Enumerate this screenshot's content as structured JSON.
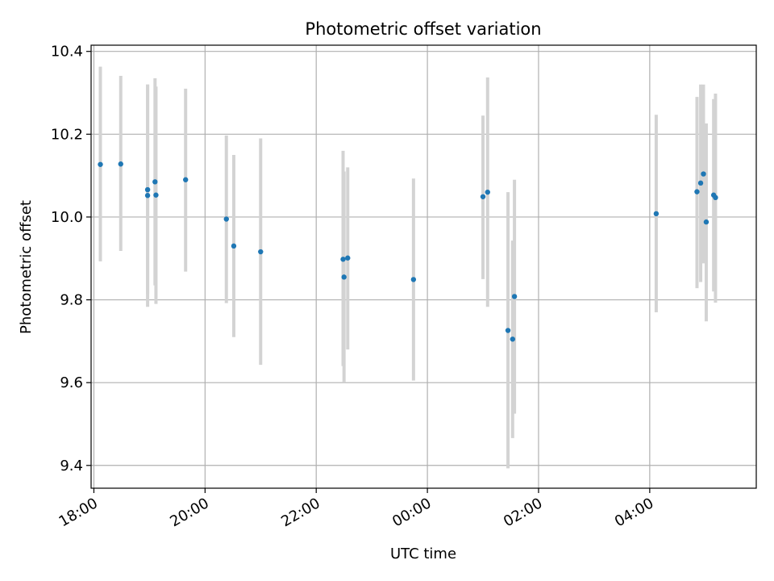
{
  "chart_data": {
    "type": "scatter",
    "title": "Photometric offset variation",
    "xlabel": "UTC time",
    "ylabel": "Photometric offset",
    "x_ticks": [
      "18:00",
      "20:00",
      "22:00",
      "00:00",
      "02:00",
      "04:00"
    ],
    "y_ticks": [
      "9.4",
      "9.6",
      "9.8",
      "10.0",
      "10.2",
      "10.4"
    ],
    "xlim": [
      "17:57",
      "05:55"
    ],
    "ylim": [
      9.345,
      10.415
    ],
    "grid": true,
    "point_color": "#1f77b4",
    "errorbar_color": "#d3d3d3",
    "points": [
      {
        "t": "18:07",
        "y": 10.127,
        "lo": 9.893,
        "hi": 10.363
      },
      {
        "t": "18:29",
        "y": 10.128,
        "lo": 9.918,
        "hi": 10.341
      },
      {
        "t": "18:58",
        "y": 10.066,
        "lo": 9.815,
        "hi": 10.32
      },
      {
        "t": "18:58",
        "y": 10.052,
        "lo": 9.783,
        "hi": 10.32
      },
      {
        "t": "19:06",
        "y": 10.085,
        "lo": 9.835,
        "hi": 10.335
      },
      {
        "t": "19:07",
        "y": 10.053,
        "lo": 9.79,
        "hi": 10.315
      },
      {
        "t": "19:39",
        "y": 10.09,
        "lo": 9.868,
        "hi": 10.31
      },
      {
        "t": "20:23",
        "y": 9.995,
        "lo": 9.792,
        "hi": 10.197
      },
      {
        "t": "20:31",
        "y": 9.93,
        "lo": 9.71,
        "hi": 10.15
      },
      {
        "t": "21:00",
        "y": 9.916,
        "lo": 9.643,
        "hi": 10.19
      },
      {
        "t": "22:29",
        "y": 9.898,
        "lo": 9.64,
        "hi": 10.16
      },
      {
        "t": "22:30",
        "y": 9.855,
        "lo": 9.6,
        "hi": 10.11
      },
      {
        "t": "22:34",
        "y": 9.901,
        "lo": 9.68,
        "hi": 10.12
      },
      {
        "t": "23:45",
        "y": 9.849,
        "lo": 9.605,
        "hi": 10.093
      },
      {
        "t": "01:00",
        "y": 10.049,
        "lo": 9.85,
        "hi": 10.245
      },
      {
        "t": "01:05",
        "y": 10.06,
        "lo": 9.783,
        "hi": 10.337
      },
      {
        "t": "01:27",
        "y": 9.726,
        "lo": 9.393,
        "hi": 10.06
      },
      {
        "t": "01:32",
        "y": 9.705,
        "lo": 9.466,
        "hi": 9.943
      },
      {
        "t": "01:34",
        "y": 9.808,
        "lo": 9.525,
        "hi": 10.09
      },
      {
        "t": "04:07",
        "y": 10.008,
        "lo": 9.77,
        "hi": 10.247
      },
      {
        "t": "04:51",
        "y": 10.061,
        "lo": 9.828,
        "hi": 10.29
      },
      {
        "t": "04:55",
        "y": 10.082,
        "lo": 9.843,
        "hi": 10.32
      },
      {
        "t": "04:58",
        "y": 10.104,
        "lo": 9.888,
        "hi": 10.32
      },
      {
        "t": "05:01",
        "y": 9.988,
        "lo": 9.748,
        "hi": 10.226
      },
      {
        "t": "05:09",
        "y": 10.053,
        "lo": 9.82,
        "hi": 10.285
      },
      {
        "t": "05:11",
        "y": 10.047,
        "lo": 9.793,
        "hi": 10.298
      }
    ]
  }
}
